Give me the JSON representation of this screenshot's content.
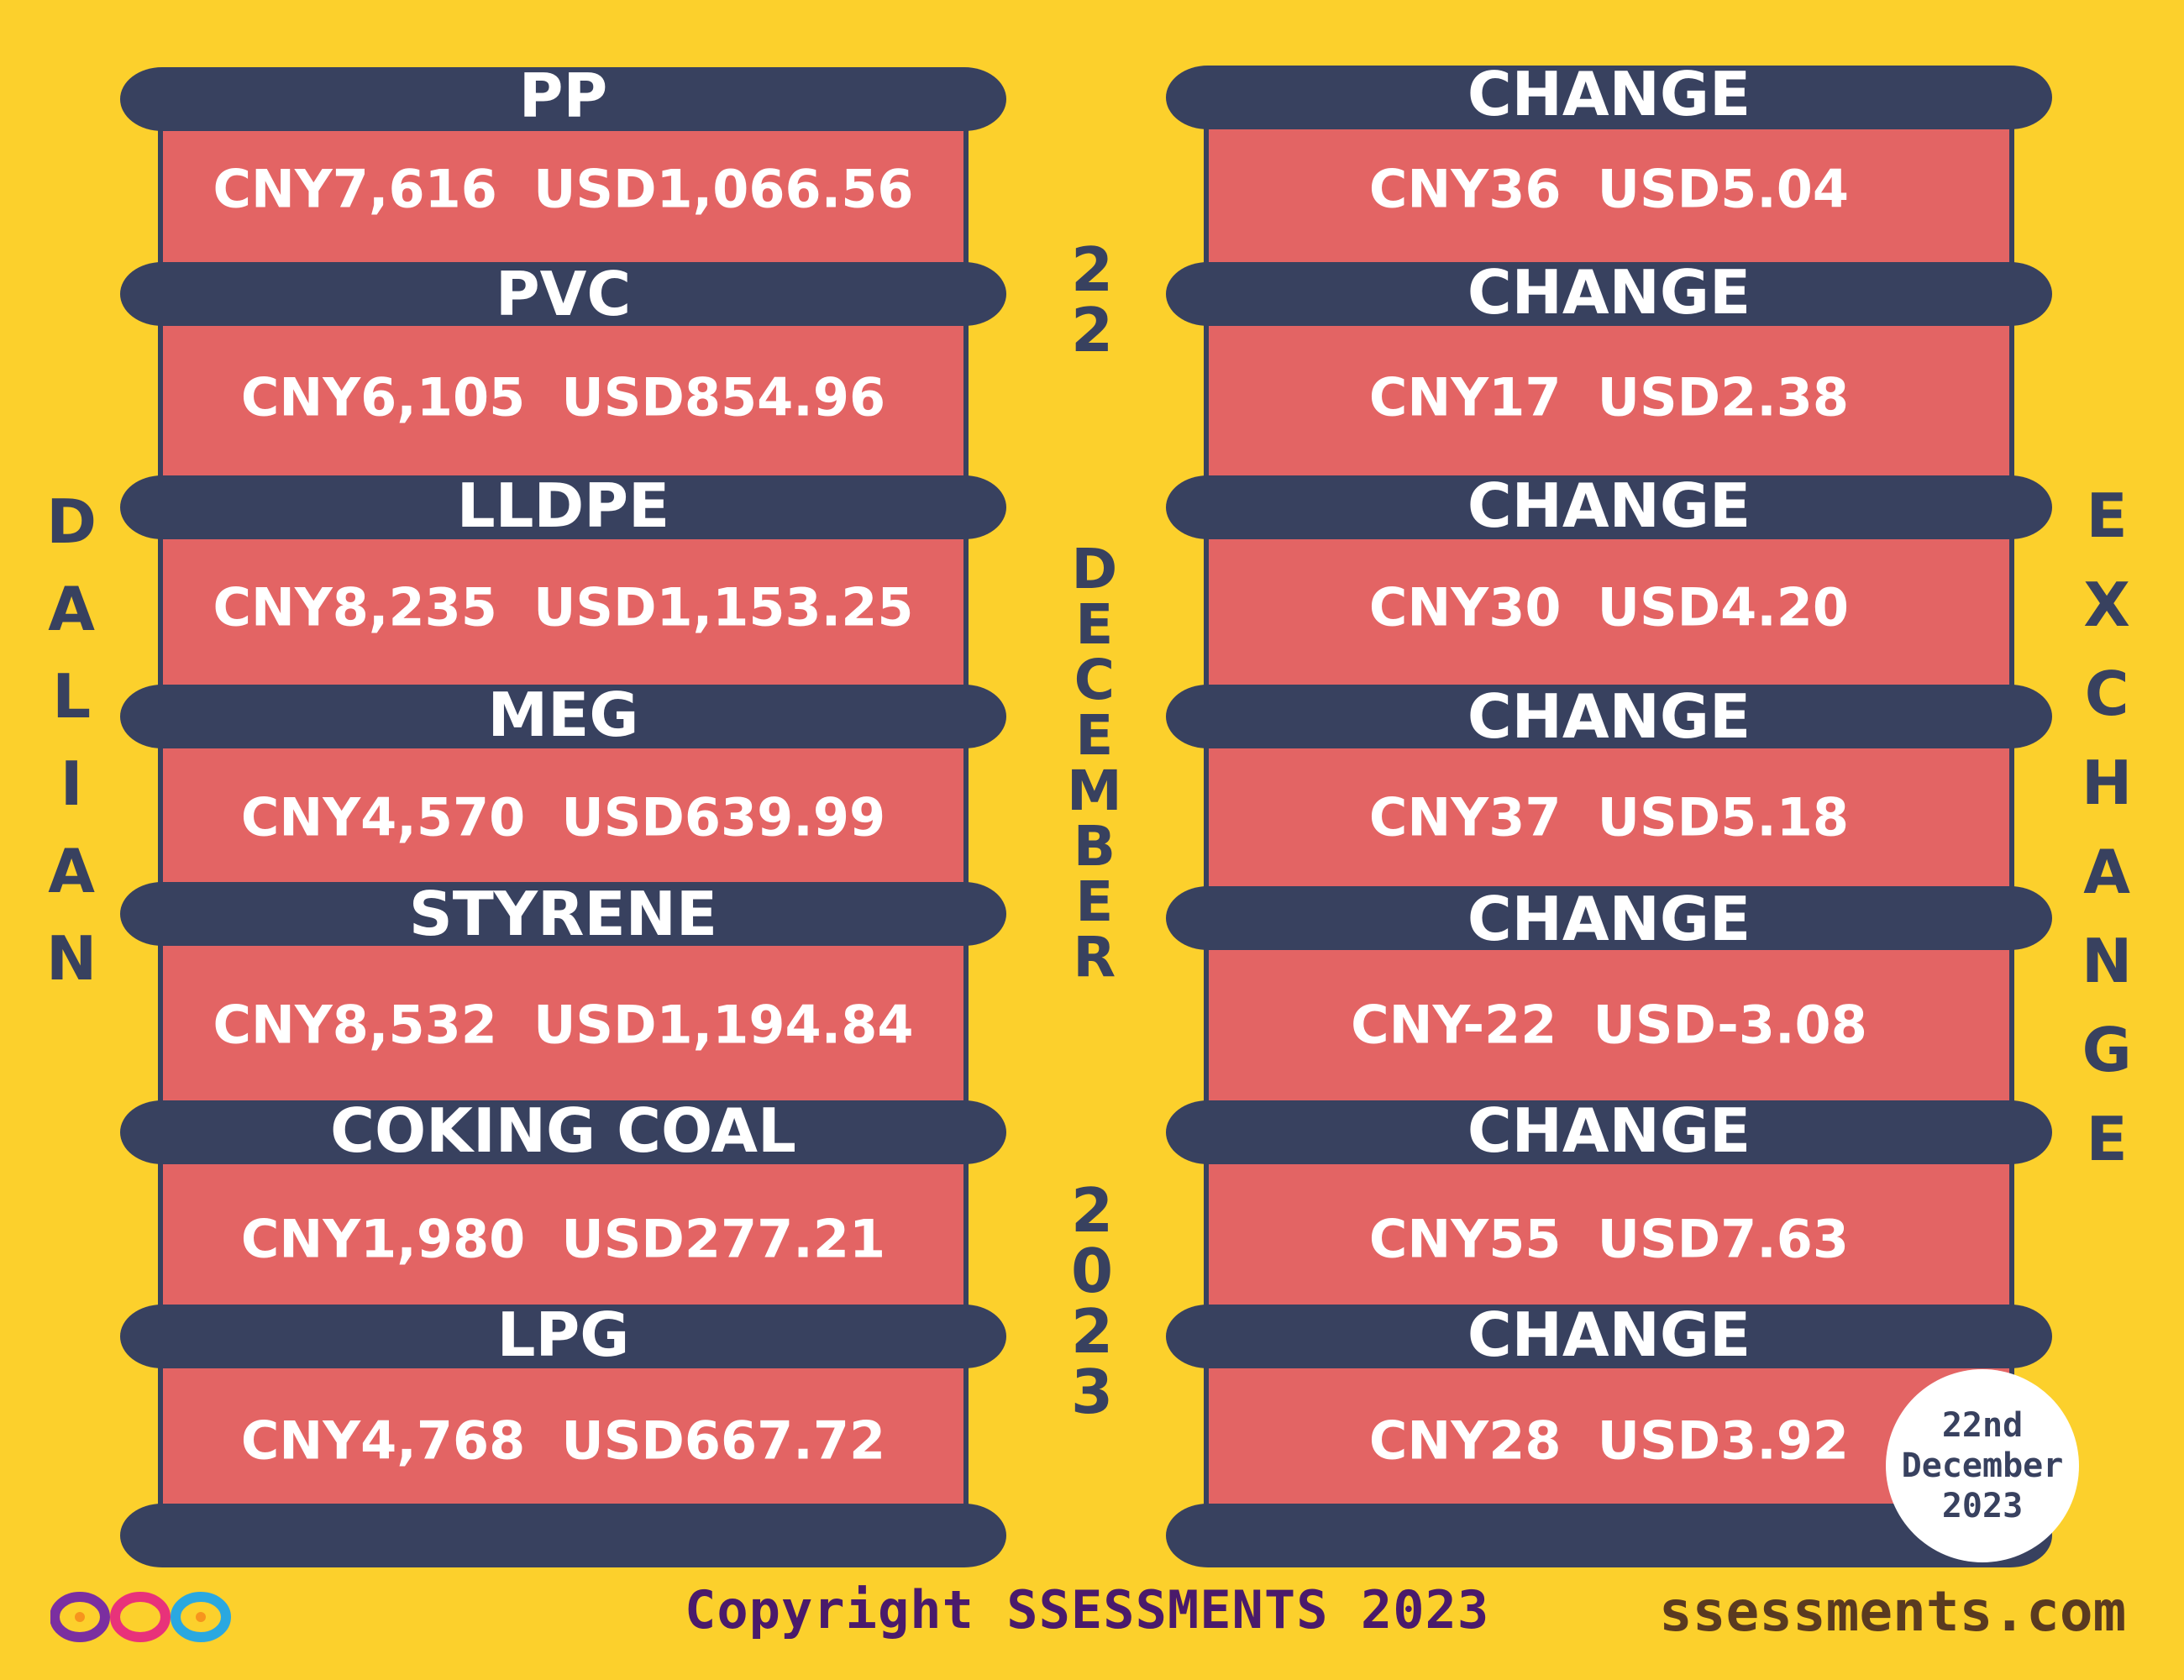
{
  "left_column": {
    "title": "DALIAN",
    "items": [
      {
        "name": "PP",
        "value": "CNY7,616  USD1,066.56"
      },
      {
        "name": "PVC",
        "value": "CNY6,105  USD854.96"
      },
      {
        "name": "LLDPE",
        "value": "CNY8,235  USD1,153.25"
      },
      {
        "name": "MEG",
        "value": "CNY4,570  USD639.99"
      },
      {
        "name": "STYRENE",
        "value": "CNY8,532  USD1,194.84"
      },
      {
        "name": "COKING COAL",
        "value": "CNY1,980  USD277.21"
      },
      {
        "name": "LPG",
        "value": "CNY4,768  USD667.72"
      }
    ]
  },
  "right_column": {
    "title": "EXCHANGE",
    "items": [
      {
        "name": "CHANGE",
        "value": "CNY36  USD5.04"
      },
      {
        "name": "CHANGE",
        "value": "CNY17  USD2.38"
      },
      {
        "name": "CHANGE",
        "value": "CNY30  USD4.20"
      },
      {
        "name": "CHANGE",
        "value": "CNY37  USD5.18"
      },
      {
        "name": "CHANGE",
        "value": "CNY-22  USD-3.08"
      },
      {
        "name": "CHANGE",
        "value": "CNY55  USD7.63"
      },
      {
        "name": "CHANGE",
        "value": "CNY28  USD3.92"
      }
    ]
  },
  "center_date": {
    "day": "22",
    "month": "DECEMBER",
    "year": "2023"
  },
  "date_badge": {
    "line1": "22nd",
    "line2": "December",
    "line3": "2023"
  },
  "footer": {
    "copyright": "Copyright SSESSMENTS 2023",
    "website": "ssessments.com"
  },
  "colors": {
    "background": "#fcd02c",
    "bar": "#38415f",
    "cell": "#e36464",
    "text": "#ffffff"
  }
}
